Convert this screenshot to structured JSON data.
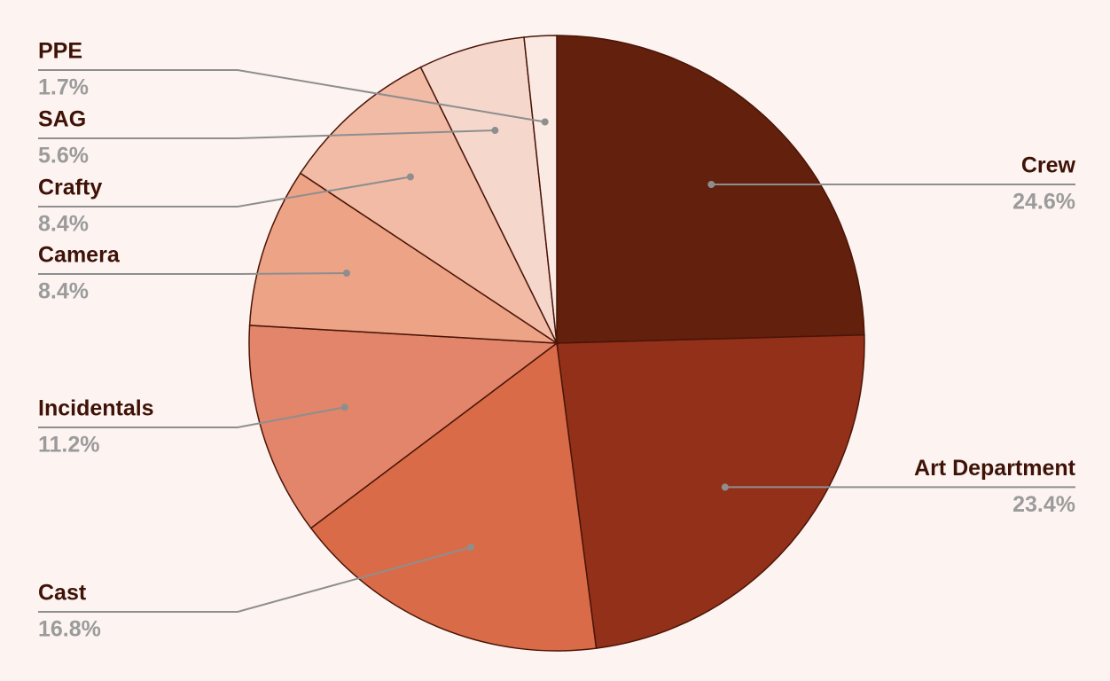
{
  "chart_data": {
    "type": "pie",
    "categories": [
      "Crew",
      "Art Department",
      "Cast",
      "Incidentals",
      "Camera",
      "Crafty",
      "SAG",
      "PPE"
    ],
    "values": [
      24.6,
      23.4,
      16.8,
      11.2,
      8.4,
      8.4,
      5.6,
      1.7
    ],
    "value_labels": [
      "24.6%",
      "23.4%",
      "16.8%",
      "11.2%",
      "8.4%",
      "8.4%",
      "5.6%",
      "1.7%"
    ],
    "colors": [
      "#63200c",
      "#93301a",
      "#d96b48",
      "#e3856a",
      "#eca386",
      "#f1bba5",
      "#f5d7cc",
      "#fbe9e4"
    ]
  }
}
